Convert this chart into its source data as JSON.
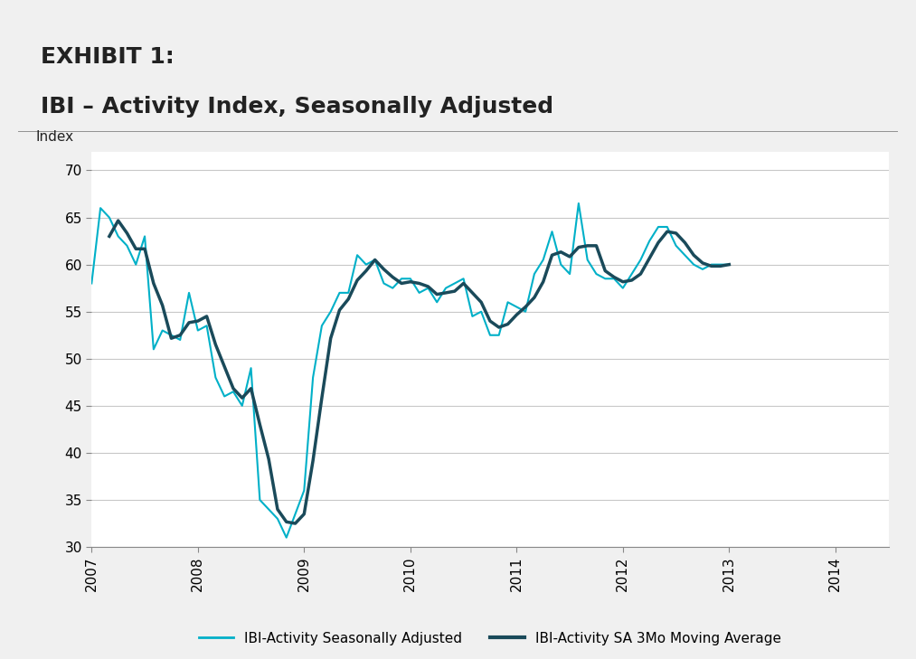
{
  "title_line1": "EXHIBIT 1:",
  "title_line2": "IBI – Activity Index, Seasonally Adjusted",
  "ylabel": "Index",
  "background_color": "#f0f0f0",
  "header_bg": "#c8c8c8",
  "plot_bg": "#ffffff",
  "grid_color": "#c8c8c8",
  "line1_color": "#00b0c8",
  "line2_color": "#1a4a5a",
  "line1_label": "IBI-Activity Seasonally Adjusted",
  "line2_label": "IBI-Activity SA 3Mo Moving Average",
  "ylim": [
    30,
    72
  ],
  "yticks": [
    30,
    35,
    40,
    45,
    50,
    55,
    60,
    65,
    70
  ],
  "xtick_labels": [
    "2007",
    "2008",
    "2009",
    "2010",
    "2011",
    "2012",
    "2013",
    "2014"
  ],
  "sa_data": [
    58.0,
    66.0,
    65.0,
    63.0,
    62.0,
    60.0,
    63.0,
    51.0,
    53.0,
    52.5,
    52.0,
    57.0,
    53.0,
    53.5,
    48.0,
    46.0,
    46.5,
    45.0,
    49.0,
    35.0,
    34.0,
    33.0,
    31.0,
    33.5,
    36.0,
    48.0,
    53.5,
    55.0,
    57.0,
    57.0,
    61.0,
    60.0,
    60.5,
    58.0,
    57.5,
    58.5,
    58.5,
    57.0,
    57.5,
    56.0,
    57.5,
    58.0,
    58.5,
    54.5,
    55.0,
    52.5,
    52.5,
    56.0,
    55.5,
    55.0,
    59.0,
    60.5,
    63.5,
    60.0,
    59.0,
    66.5,
    60.5,
    59.0,
    58.5,
    58.5,
    57.5,
    59.0,
    60.5,
    62.5,
    64.0,
    64.0,
    62.0,
    61.0,
    60.0,
    59.5,
    60.0,
    60.0,
    60.0
  ],
  "start_year": 2007,
  "start_month": 1,
  "n_months": 85
}
